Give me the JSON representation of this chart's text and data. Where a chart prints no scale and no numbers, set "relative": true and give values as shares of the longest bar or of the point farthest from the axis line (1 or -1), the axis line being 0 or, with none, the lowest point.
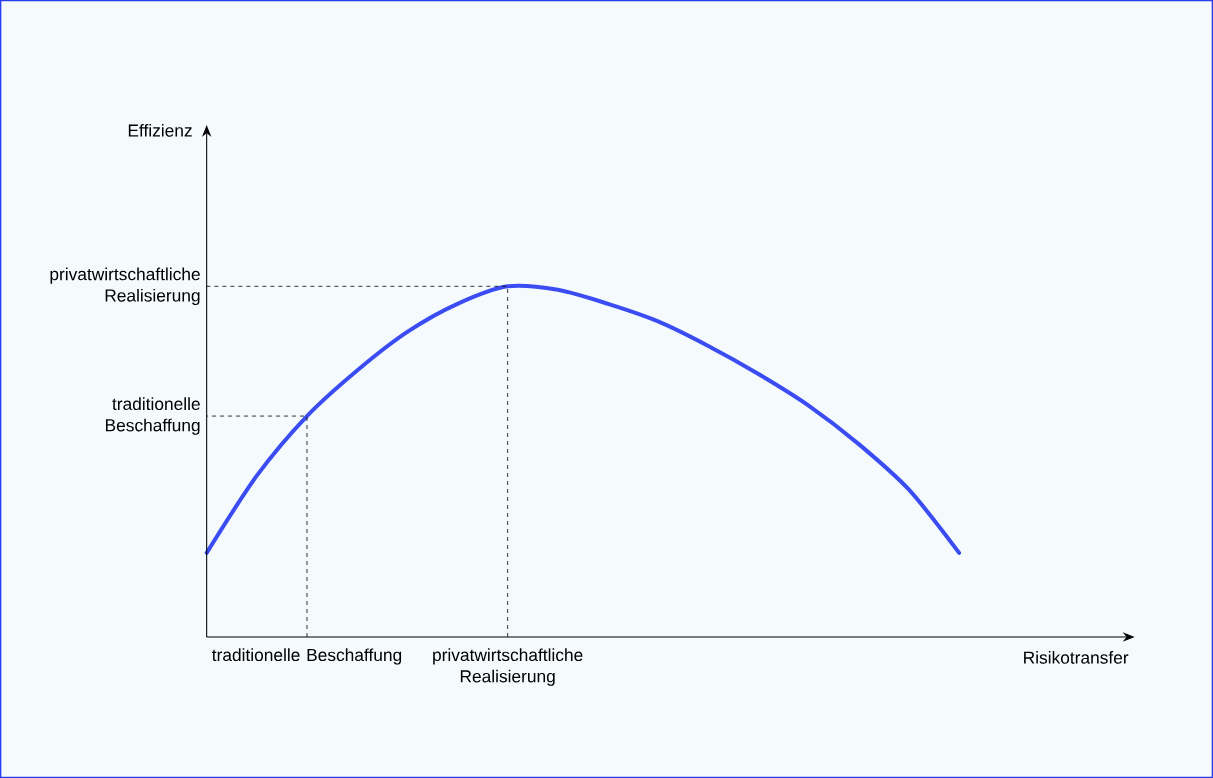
{
  "chart_data": {
    "type": "line",
    "relative": true,
    "xlabel": "Risikotransfer",
    "categories": [
      null,
      null,
      "traditionelle Beschaffung",
      null,
      null,
      null,
      "privatwirtschaftliche Realisierung",
      null,
      null,
      null,
      null,
      null,
      null,
      null,
      null,
      null
    ],
    "series": [
      {
        "color": "#3a4cf2",
        "values": [
          0.24,
          0.46,
          0.63,
          0.76,
          0.87,
          0.95,
          1,
          0.99,
          0.95,
          0.9,
          0.83,
          0.75,
          0.66,
          0.55,
          0.42,
          0.24
        ]
      }
    ],
    "annotations": [
      "traditionelle Beschaffung",
      "privatwirtschaftliche Realisierung",
      "Effizienz"
    ],
    "marker": "none",
    "line_style": "solid",
    "grid": "x"
  }
}
